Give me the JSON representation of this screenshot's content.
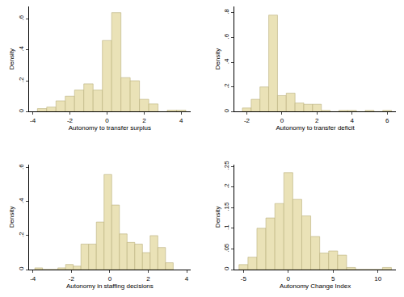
{
  "chart_data": [
    {
      "type": "histogram",
      "x_label": "Autonomy to transfer surplus",
      "y_label": "Density",
      "color": "#eae2b7",
      "bins": [
        -3.75,
        -3.25,
        -2.75,
        -2.25,
        -1.75,
        -1.25,
        -0.75,
        -0.25,
        0.25,
        0.75,
        1.25,
        1.75,
        2.25,
        2.75,
        3.25,
        3.75,
        4.25
      ],
      "values": [
        0.02,
        0.03,
        0.07,
        0.1,
        0.14,
        0.18,
        0.14,
        0.46,
        0.64,
        0.22,
        0.2,
        0.08,
        0.05,
        0,
        0.01,
        0.01
      ],
      "xlim": [
        -4.2,
        4.5
      ],
      "ylim": [
        0,
        0.68
      ],
      "xticks": [
        -4,
        -2,
        0,
        2,
        4
      ],
      "yticks": [
        0,
        {
          "value": 0.2,
          "label": ".2"
        },
        {
          "value": 0.4,
          "label": ".4"
        },
        {
          "value": 0.6,
          "label": ".6"
        }
      ]
    },
    {
      "type": "histogram",
      "x_label": "Autonomy to transfer deficit",
      "y_label": "Density",
      "color": "#eae2b7",
      "bins": [
        -2.25,
        -1.75,
        -1.25,
        -0.75,
        -0.25,
        0.25,
        0.75,
        1.25,
        1.75,
        2.25,
        2.75,
        3.25,
        3.75,
        4.25,
        4.75,
        5.25,
        5.75,
        6.25
      ],
      "values": [
        0.03,
        0.1,
        0.2,
        0.78,
        0.13,
        0.15,
        0.07,
        0.06,
        0.06,
        0.01,
        0,
        0.01,
        0.01,
        0,
        0.01,
        0,
        0.01
      ],
      "xlim": [
        -2.7,
        6.5
      ],
      "ylim": [
        0,
        0.85
      ],
      "xticks": [
        -2,
        0,
        2,
        4,
        6
      ],
      "yticks": [
        0,
        {
          "value": 0.2,
          "label": ".2"
        },
        {
          "value": 0.4,
          "label": ".4"
        },
        {
          "value": 0.6,
          "label": ".6"
        },
        {
          "value": 0.8,
          "label": ".8"
        }
      ]
    },
    {
      "type": "histogram",
      "x_label": "Autonomy in staffing decisions",
      "y_label": "Density",
      "color": "#eae2b7",
      "bins": [
        -3.9,
        -3.5,
        -3.1,
        -2.7,
        -2.3,
        -1.9,
        -1.5,
        -1.1,
        -0.7,
        -0.3,
        0.1,
        0.5,
        0.9,
        1.3,
        1.7,
        2.1,
        2.5,
        2.9,
        3.3
      ],
      "values": [
        0.01,
        0,
        0,
        0.01,
        0.03,
        0.02,
        0.15,
        0.15,
        0.28,
        0.56,
        0.38,
        0.21,
        0.16,
        0.15,
        0.1,
        0.2,
        0.13,
        0.04
      ],
      "xlim": [
        -4.2,
        4.2
      ],
      "ylim": [
        0,
        0.62
      ],
      "xticks": [
        -4,
        -2,
        0,
        2,
        4
      ],
      "yticks": [
        0,
        {
          "value": 0.2,
          "label": ".2"
        },
        {
          "value": 0.4,
          "label": ".4"
        },
        {
          "value": 0.6,
          "label": ".6"
        }
      ]
    },
    {
      "type": "histogram",
      "x_label": "Autonomy Change Index",
      "y_label": "Density",
      "color": "#eae2b7",
      "bins": [
        -5.5,
        -4.5,
        -3.5,
        -2.5,
        -1.5,
        -0.5,
        0.5,
        1.5,
        2.5,
        3.5,
        4.5,
        5.5,
        6.5,
        7.5,
        8.5,
        9.5,
        10.5,
        11.5
      ],
      "values": [
        0.012,
        0.03,
        0.1,
        0.125,
        0.16,
        0.235,
        0.17,
        0.13,
        0.08,
        0.04,
        0.045,
        0.035,
        0.005,
        0,
        0,
        0,
        0.005
      ],
      "xlim": [
        -6,
        12
      ],
      "ylim": [
        0,
        0.255
      ],
      "xticks": [
        -5,
        0,
        5,
        10
      ],
      "yticks": [
        0,
        {
          "value": 0.05,
          "label": ".05"
        },
        {
          "value": 0.1,
          "label": ".1"
        },
        {
          "value": 0.15,
          "label": ".15"
        },
        {
          "value": 0.2,
          "label": ".2"
        },
        {
          "value": 0.25,
          "label": ".25"
        }
      ]
    }
  ]
}
